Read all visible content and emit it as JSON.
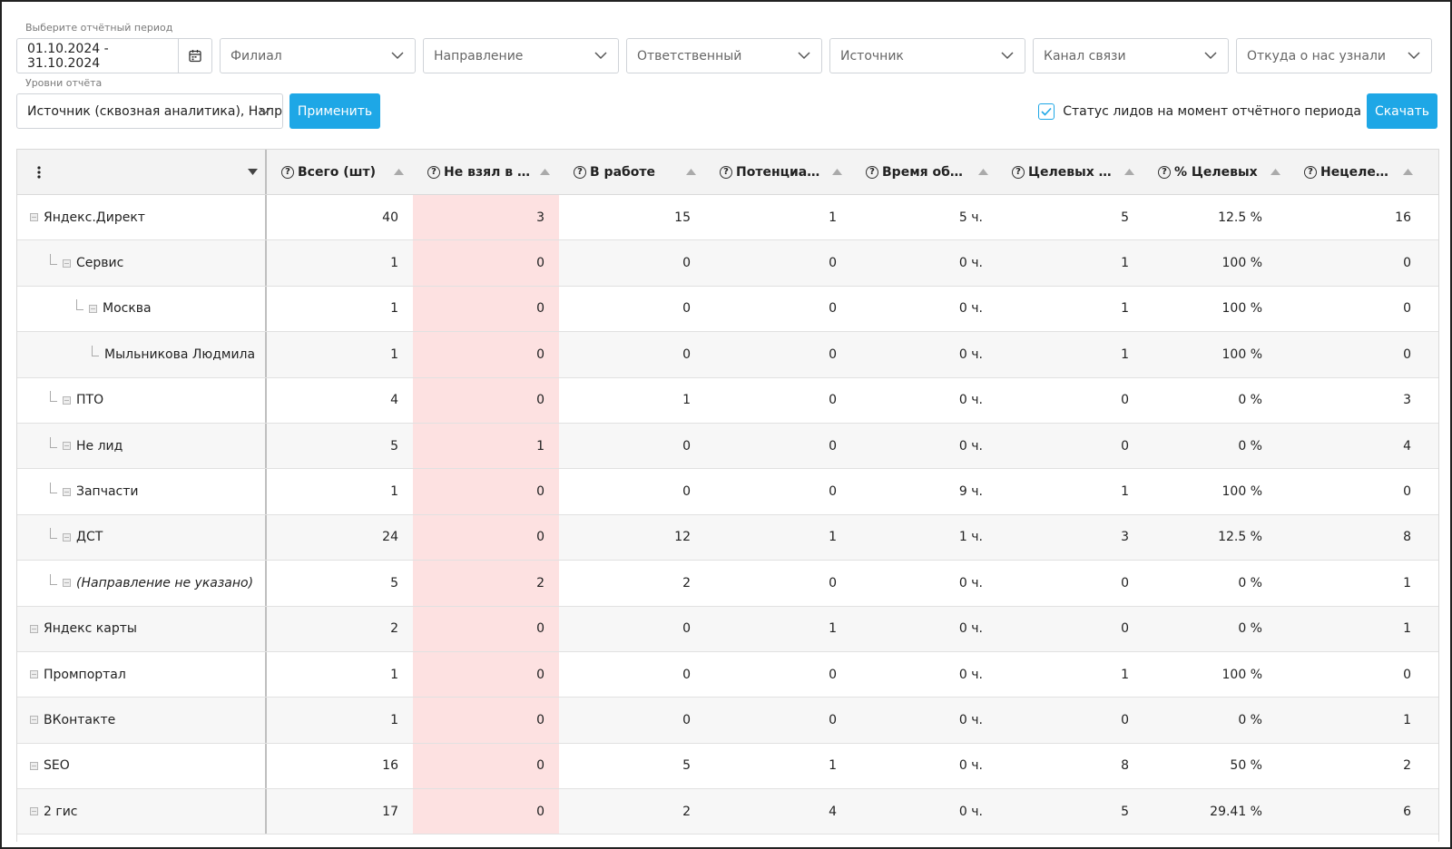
{
  "filters": {
    "period_label": "Выберите отчётный период",
    "date_range": "01.10.2024 - 31.10.2024",
    "branch": "Филиал",
    "direction": "Направление",
    "responsible": "Ответственный",
    "source": "Источник",
    "channel": "Канал связи",
    "heard_from": "Откуда о нас узнали"
  },
  "levels": {
    "label": "Уровни отчёта",
    "value": "Источник (сквозная аналитика), Направление"
  },
  "actions": {
    "apply": "Применить",
    "status_checkbox_label": "Статус лидов на момент отчётного периода",
    "status_checked": true,
    "download": "Скачать"
  },
  "accent_color": "#1ea7e6",
  "highlight_color": "#fde1e1",
  "table": {
    "menu_icon": "more-vertical-icon",
    "columns": [
      "Всего (шт)",
      "Не взял в ра...",
      "В работе",
      "Потенциаль...",
      "Время обра...",
      "Целевых (шт)",
      "% Целевых",
      "Нецелевых (..."
    ],
    "rows": [
      {
        "name": "Яндекс.Директ",
        "level": 0,
        "values": [
          "40",
          "3",
          "15",
          "1",
          "5 ч.",
          "5",
          "12.5 %",
          "16"
        ]
      },
      {
        "name": "Сервис",
        "level": 1,
        "values": [
          "1",
          "0",
          "0",
          "0",
          "0 ч.",
          "1",
          "100 %",
          "0"
        ]
      },
      {
        "name": "Москва",
        "level": 2,
        "values": [
          "1",
          "0",
          "0",
          "0",
          "0 ч.",
          "1",
          "100 %",
          "0"
        ]
      },
      {
        "name": "Мыльникова Людмила",
        "level": 3,
        "values": [
          "1",
          "0",
          "0",
          "0",
          "0 ч.",
          "1",
          "100 %",
          "0"
        ]
      },
      {
        "name": "ПТО",
        "level": 1,
        "values": [
          "4",
          "0",
          "1",
          "0",
          "0 ч.",
          "0",
          "0 %",
          "3"
        ]
      },
      {
        "name": "Не лид",
        "level": 1,
        "values": [
          "5",
          "1",
          "0",
          "0",
          "0 ч.",
          "0",
          "0 %",
          "4"
        ]
      },
      {
        "name": "Запчасти",
        "level": 1,
        "values": [
          "1",
          "0",
          "0",
          "0",
          "9 ч.",
          "1",
          "100 %",
          "0"
        ]
      },
      {
        "name": "ДСТ",
        "level": 1,
        "values": [
          "24",
          "0",
          "12",
          "1",
          "1 ч.",
          "3",
          "12.5 %",
          "8"
        ]
      },
      {
        "name": "(Направление не указано)",
        "level": 1,
        "values": [
          "5",
          "2",
          "2",
          "0",
          "0 ч.",
          "0",
          "0 %",
          "1"
        ]
      },
      {
        "name": "Яндекс карты",
        "level": 0,
        "values": [
          "2",
          "0",
          "0",
          "1",
          "0 ч.",
          "0",
          "0 %",
          "1"
        ]
      },
      {
        "name": "Промпортал",
        "level": 0,
        "values": [
          "1",
          "0",
          "0",
          "0",
          "0 ч.",
          "1",
          "100 %",
          "0"
        ]
      },
      {
        "name": "ВКонтакте",
        "level": 0,
        "values": [
          "1",
          "0",
          "0",
          "0",
          "0 ч.",
          "0",
          "0 %",
          "1"
        ]
      },
      {
        "name": "SEO",
        "level": 0,
        "values": [
          "16",
          "0",
          "5",
          "1",
          "0 ч.",
          "8",
          "50 %",
          "2"
        ]
      },
      {
        "name": "2 гис",
        "level": 0,
        "values": [
          "17",
          "0",
          "2",
          "4",
          "0 ч.",
          "5",
          "29.41 %",
          "6"
        ]
      }
    ]
  }
}
